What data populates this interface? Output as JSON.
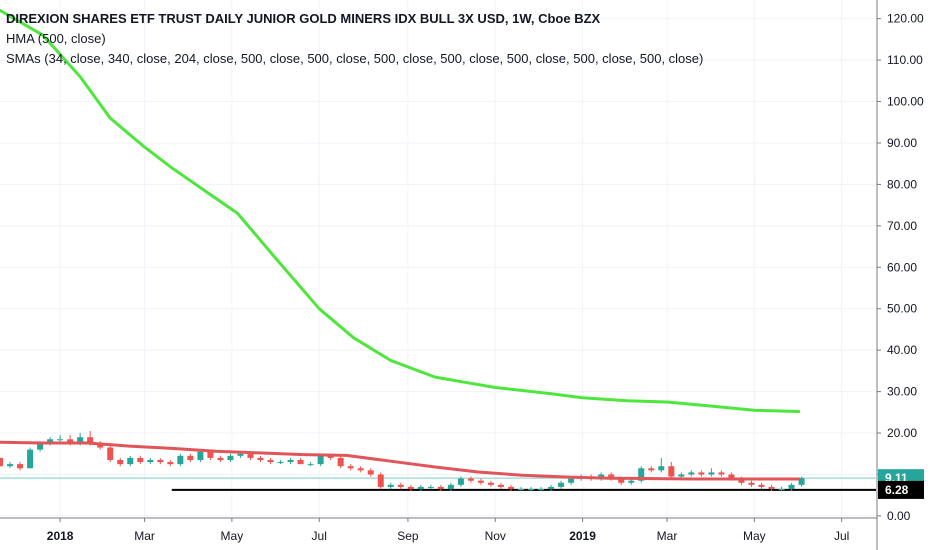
{
  "legend": {
    "title": "DIREXION SHARES ETF TRUST DAILY JUNIOR GOLD MINERS IDX BULL 3X USD, 1W, Cboe BZX",
    "hma_label": "HMA (500, close)",
    "sma_label": "SMAs (34, close, 340, close, 204, close, 500, close, 500, close, 500, close, 500, close, 500, close, 500, close, 500, close)"
  },
  "chart_data": {
    "type": "line",
    "x_axis": {
      "labels": [
        "2018",
        "Mar",
        "May",
        "Jul",
        "Sep",
        "Nov",
        "2019",
        "Mar",
        "May",
        "Jul"
      ],
      "bold_labels": [
        "2018",
        "2019"
      ],
      "range": [
        "2017-11-20",
        "2019-07-25"
      ]
    },
    "y_axis": {
      "ticks": [
        0,
        10,
        20,
        30,
        40,
        50,
        60,
        70,
        80,
        90,
        100,
        110,
        120
      ],
      "tick_labels": [
        "0.00",
        "10.00",
        "20.00",
        "30.00",
        "40.00",
        "50.00",
        "60.00",
        "70.00",
        "80.00",
        "90.00",
        "100.00",
        "110.00",
        "120.00"
      ],
      "range": [
        -0.5,
        124.5
      ],
      "position": "right"
    },
    "grid": true,
    "price_labels": [
      {
        "value": 9.11,
        "text": "9.11",
        "color": "#26a69a"
      },
      {
        "value": 6.28,
        "text": "6.28",
        "color": "#000000"
      }
    ],
    "horizontal_line": {
      "value": 6.28,
      "color": "#000000",
      "start": "2018-03-20",
      "end": "2019-07-25"
    },
    "current_price_line": {
      "value": 9.11,
      "color": "#80cbc4"
    },
    "series": [
      {
        "key": "hma",
        "color": "#4ee63c",
        "points": [
          [
            "2017-11-20",
            122
          ],
          [
            "2017-12-20",
            116
          ],
          [
            "2018-01-15",
            106
          ],
          [
            "2018-02-05",
            96
          ],
          [
            "2018-03-01",
            89
          ],
          [
            "2018-03-20",
            84
          ],
          [
            "2018-04-10",
            79
          ],
          [
            "2018-05-05",
            73
          ],
          [
            "2018-06-01",
            62
          ],
          [
            "2018-07-01",
            50
          ],
          [
            "2018-07-25",
            43
          ],
          [
            "2018-08-20",
            37.5
          ],
          [
            "2018-09-20",
            33.5
          ],
          [
            "2018-10-15",
            32
          ],
          [
            "2018-11-01",
            31
          ],
          [
            "2018-12-10",
            29.5
          ],
          [
            "2019-01-01",
            28.5
          ],
          [
            "2019-02-01",
            27.8
          ],
          [
            "2019-03-01",
            27.5
          ],
          [
            "2019-04-01",
            26.5
          ],
          [
            "2019-05-01",
            25.5
          ],
          [
            "2019-06-01",
            25.2
          ]
        ]
      },
      {
        "key": "sma",
        "color": "#e05559",
        "points": [
          [
            "2017-11-20",
            17.8
          ],
          [
            "2017-12-20",
            17.6
          ],
          [
            "2018-01-20",
            17.6
          ],
          [
            "2018-02-20",
            16.8
          ],
          [
            "2018-03-20",
            16.3
          ],
          [
            "2018-04-20",
            15.6
          ],
          [
            "2018-05-20",
            15.2
          ],
          [
            "2018-06-20",
            14.8
          ],
          [
            "2018-07-20",
            14.6
          ],
          [
            "2018-08-20",
            13.2
          ],
          [
            "2018-09-20",
            11.8
          ],
          [
            "2018-10-20",
            10.6
          ],
          [
            "2018-11-20",
            9.8
          ],
          [
            "2018-12-20",
            9.4
          ],
          [
            "2019-01-20",
            9.1
          ],
          [
            "2019-02-20",
            9.0
          ],
          [
            "2019-03-20",
            8.9
          ],
          [
            "2019-04-20",
            8.9
          ],
          [
            "2019-05-20",
            8.9
          ],
          [
            "2019-06-01",
            8.9
          ]
        ]
      }
    ],
    "candles": [
      [
        "2017-11-20",
        14,
        14,
        12,
        12
      ],
      [
        "2017-11-27",
        12,
        13,
        11.5,
        12.5
      ],
      [
        "2017-12-04",
        12.5,
        13,
        11,
        11.5
      ],
      [
        "2017-12-11",
        11.5,
        16.5,
        11.5,
        16
      ],
      [
        "2017-12-18",
        16,
        18,
        15.5,
        17.5
      ],
      [
        "2017-12-25",
        17.5,
        19,
        17,
        18.5
      ],
      [
        "2018-01-01",
        18.5,
        19.5,
        17.5,
        18.5
      ],
      [
        "2018-01-08",
        18.5,
        19.5,
        17,
        17.5
      ],
      [
        "2018-01-15",
        17.5,
        20,
        17,
        19
      ],
      [
        "2018-01-22",
        19,
        20.5,
        17,
        17.5
      ],
      [
        "2018-01-29",
        17.5,
        18,
        16,
        16.5
      ],
      [
        "2018-02-05",
        16.5,
        17,
        13,
        13.5
      ],
      [
        "2018-02-12",
        13.5,
        14,
        12,
        12.5
      ],
      [
        "2018-02-19",
        12.5,
        14.5,
        12,
        14
      ],
      [
        "2018-02-26",
        14,
        14.5,
        12.5,
        13
      ],
      [
        "2018-03-05",
        13,
        14,
        12.5,
        13.5
      ],
      [
        "2018-03-12",
        13.5,
        14,
        12.5,
        13
      ],
      [
        "2018-03-19",
        13,
        13.5,
        12,
        12.5
      ],
      [
        "2018-03-26",
        12.5,
        15,
        12,
        14.5
      ],
      [
        "2018-04-02",
        14.5,
        15,
        13,
        13.5
      ],
      [
        "2018-04-09",
        13.5,
        16,
        13,
        15.5
      ],
      [
        "2018-04-16",
        15.5,
        16,
        13.5,
        14
      ],
      [
        "2018-04-23",
        14,
        14.5,
        13,
        13.5
      ],
      [
        "2018-04-30",
        13.5,
        15,
        13,
        14.5
      ],
      [
        "2018-05-07",
        14.5,
        15.5,
        14,
        15
      ],
      [
        "2018-05-14",
        15,
        15.5,
        13.5,
        14
      ],
      [
        "2018-05-21",
        14,
        14.5,
        13,
        13.5
      ],
      [
        "2018-05-28",
        13.5,
        14,
        12.5,
        13
      ],
      [
        "2018-06-04",
        13,
        13.5,
        12.5,
        13
      ],
      [
        "2018-06-11",
        13,
        14,
        12.5,
        13.5
      ],
      [
        "2018-06-18",
        13.5,
        14,
        12.5,
        12.5
      ],
      [
        "2018-06-25",
        12.5,
        13,
        12,
        12.5
      ],
      [
        "2018-07-02",
        12.5,
        15,
        12,
        14.5
      ],
      [
        "2018-07-09",
        14.5,
        15,
        13.5,
        14
      ],
      [
        "2018-07-16",
        14,
        14.5,
        11.5,
        12
      ],
      [
        "2018-07-23",
        12,
        12.5,
        11,
        11.5
      ],
      [
        "2018-07-30",
        11.5,
        12,
        10.5,
        11
      ],
      [
        "2018-08-06",
        11,
        11.5,
        9.5,
        10
      ],
      [
        "2018-08-13",
        10,
        10.5,
        6.5,
        7
      ],
      [
        "2018-08-20",
        7,
        8,
        6.5,
        7.5
      ],
      [
        "2018-08-27",
        7.5,
        8,
        6.5,
        7
      ],
      [
        "2018-09-03",
        7,
        7.5,
        6,
        6.5
      ],
      [
        "2018-09-10",
        6.5,
        7.5,
        6,
        7
      ],
      [
        "2018-09-17",
        7,
        7.5,
        6.5,
        7
      ],
      [
        "2018-09-24",
        7,
        7.5,
        6,
        6.5
      ],
      [
        "2018-10-01",
        6.5,
        8,
        6,
        7.5
      ],
      [
        "2018-10-08",
        7.5,
        9.5,
        7,
        9
      ],
      [
        "2018-10-15",
        9,
        9.5,
        8,
        8.5
      ],
      [
        "2018-10-22",
        8.5,
        9,
        7.5,
        8
      ],
      [
        "2018-10-29",
        8,
        8.5,
        7,
        7.5
      ],
      [
        "2018-11-05",
        7.5,
        8,
        6.5,
        7
      ],
      [
        "2018-11-12",
        7,
        7.5,
        6,
        6.5
      ],
      [
        "2018-11-19",
        6.5,
        7,
        6,
        6.5
      ],
      [
        "2018-11-26",
        6.5,
        7,
        6,
        6.5
      ],
      [
        "2018-12-03",
        6.5,
        7,
        6,
        6.5
      ],
      [
        "2018-12-10",
        6.5,
        7.5,
        6,
        7
      ],
      [
        "2018-12-17",
        7,
        8.5,
        6.5,
        8
      ],
      [
        "2018-12-24",
        8,
        9.5,
        7.5,
        9
      ],
      [
        "2018-12-31",
        9,
        10,
        8.5,
        9.5
      ],
      [
        "2019-01-07",
        9.5,
        10,
        8.5,
        9
      ],
      [
        "2019-01-14",
        9,
        10.5,
        8.5,
        10
      ],
      [
        "2019-01-21",
        10,
        10.5,
        8.5,
        9
      ],
      [
        "2019-01-28",
        9,
        9.5,
        7.5,
        8
      ],
      [
        "2019-02-04",
        8,
        9,
        7.5,
        8.5
      ],
      [
        "2019-02-11",
        8.5,
        12,
        8,
        11.5
      ],
      [
        "2019-02-18",
        11.5,
        12,
        10.5,
        11
      ],
      [
        "2019-02-25",
        11,
        14,
        10.5,
        12
      ],
      [
        "2019-03-04",
        12,
        13,
        9,
        9.5
      ],
      [
        "2019-03-11",
        9.5,
        10.5,
        9,
        10
      ],
      [
        "2019-03-18",
        10,
        11,
        9.5,
        10.5
      ],
      [
        "2019-03-25",
        10.5,
        11,
        9.5,
        10
      ],
      [
        "2019-04-01",
        10,
        11.5,
        9.5,
        10.5
      ],
      [
        "2019-04-08",
        10.5,
        11,
        9.5,
        10
      ],
      [
        "2019-04-15",
        10,
        10.5,
        8.5,
        9
      ],
      [
        "2019-04-22",
        9,
        9.5,
        7.5,
        8
      ],
      [
        "2019-04-29",
        8,
        8.5,
        7,
        7.5
      ],
      [
        "2019-05-06",
        7.5,
        8,
        6.5,
        7
      ],
      [
        "2019-05-13",
        7,
        7.5,
        6,
        6.5
      ],
      [
        "2019-05-20",
        6.5,
        7,
        6,
        6.5
      ],
      [
        "2019-05-27",
        6.5,
        8,
        6,
        7.5
      ],
      [
        "2019-06-03",
        7.5,
        9.5,
        7,
        9.11
      ]
    ]
  }
}
